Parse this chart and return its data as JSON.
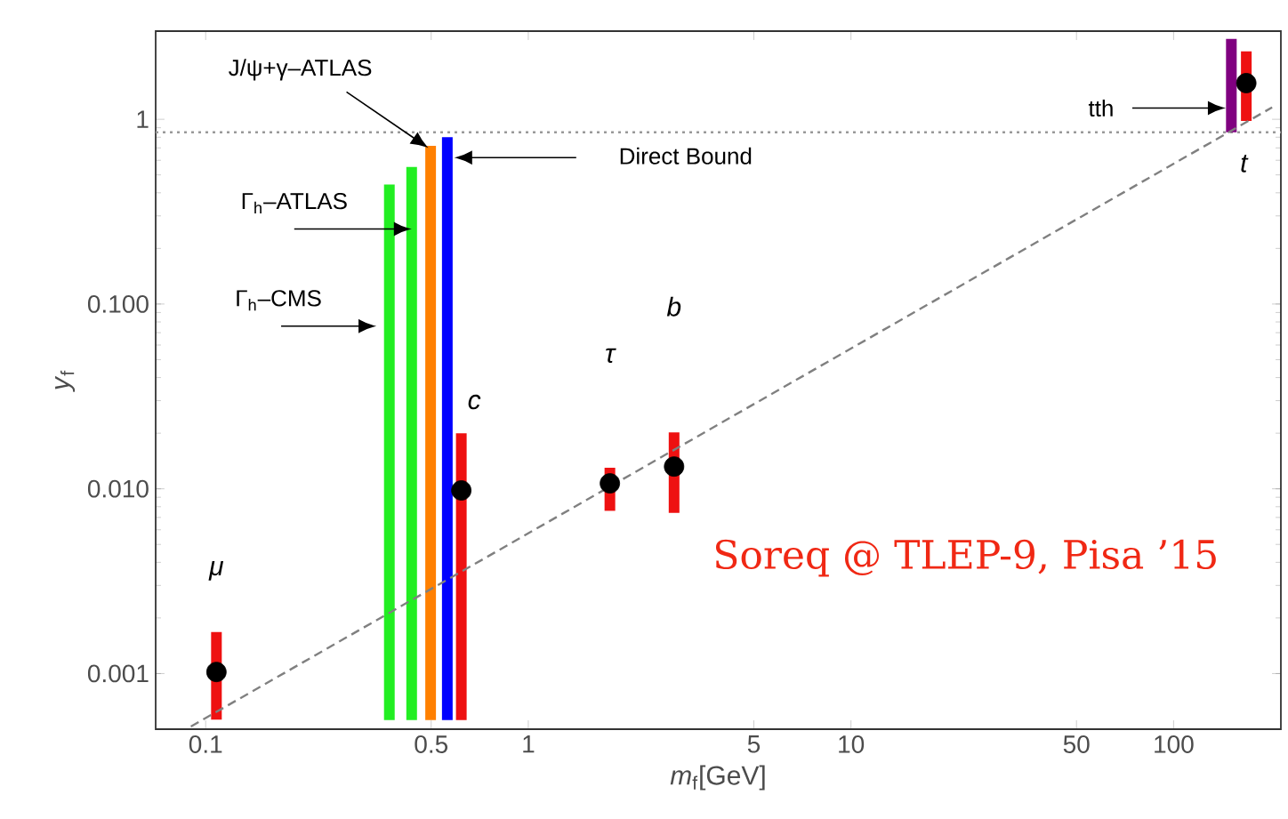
{
  "chart_data": {
    "type": "scatter",
    "xlabel": "*m*$_{f}$[GeV]",
    "ylabel": "*y*$_{f}$",
    "log": "xy",
    "marker": "circle",
    "xlim": [
      0.07,
      215
    ],
    "ylim": [
      0.0005,
      3
    ],
    "xticks": [
      0.1,
      0.5,
      1,
      5,
      10,
      50,
      100
    ],
    "yticks": [
      0.001,
      {
        "value": 0.01,
        "label": "0.010"
      },
      {
        "value": 0.1,
        "label": "0.100"
      },
      1
    ],
    "series": [
      {
        "type": "bar",
        "color": "#ee1111",
        "x": [
          0.108,
          0.62,
          1.79,
          2.83,
          168
        ],
        "base": [
          0.000563,
          0.00056,
          0.0076,
          0.0074,
          0.98
        ],
        "values": [
          0.001117,
          0.01944,
          0.0054,
          0.0128,
          1.35
        ]
      },
      {
        "type": "bar",
        "colors": [
          "#22ee22",
          "#22ee22",
          "#ff8000",
          "#0000ff",
          "#800080"
        ],
        "x": [
          0.371,
          0.435,
          0.498,
          0.561,
          151
        ],
        "base": [
          0.00056,
          0.00056,
          0.00056,
          0.00056,
          0.85
        ],
        "values": [
          0.44244,
          0.55144,
          0.71744,
          0.79944,
          1.87
        ]
      },
      {
        "color": "#000000",
        "x": [
          0.108,
          0.62,
          1.79,
          2.83,
          168
        ],
        "values": [
          0.00102,
          0.0098,
          0.0107,
          0.0132,
          1.57
        ]
      },
      {
        "type": "line",
        "color": "#808080",
        "line_style": "dashed",
        "marker": "none",
        "x": [
          0.09,
          202
        ],
        "values": [
          0.000517,
          1.16
        ]
      }
    ],
    "ref_lines": [
      {
        "axis": "y",
        "value": 0.85,
        "color": "#999999",
        "line_style": "dotted"
      }
    ],
    "annotations": [
      "μ",
      "c",
      "τ",
      "b",
      "t",
      "J/ψ+γ–ATLAS",
      {
        "text": "Γ$_{h}$–ATLAS",
        "x": 0.435,
        "y": 0.255
      },
      "Γ$_{h}$–CMS",
      "Direct Bound",
      "tth",
      "Soreq @ TLEP-9, Pisa ’15"
    ]
  }
}
